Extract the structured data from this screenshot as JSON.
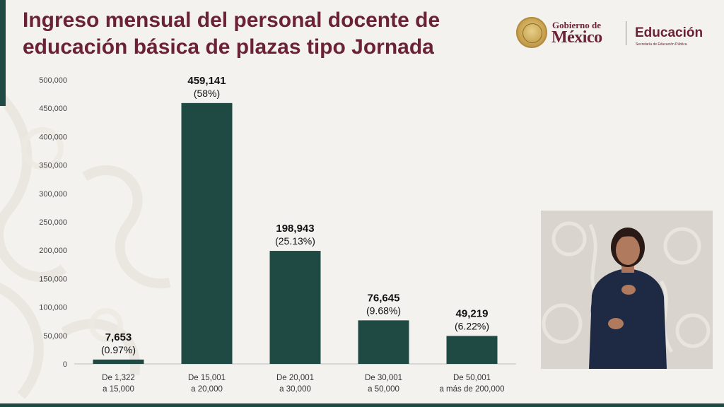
{
  "header": {
    "title_line1": "Ingreso mensual del personal docente de",
    "title_line2": "educación básica de plazas tipo Jornada"
  },
  "logos": {
    "gobierno_small": "Gobierno de",
    "gobierno_big": "México",
    "educacion": "Educación",
    "educacion_sub": "Secretaría de Educación Pública"
  },
  "colors": {
    "bar": "#1f4a44",
    "title": "#6b2136",
    "background": "#f4f2ef",
    "accent_gold": "#b38d3f"
  },
  "chart_data": {
    "type": "bar",
    "categories": [
      [
        "De 1,322",
        "a 15,000"
      ],
      [
        "De 15,001",
        "a 20,000"
      ],
      [
        "De 20,001",
        "a 30,000"
      ],
      [
        "De 30,001",
        "a 50,000"
      ],
      [
        "De 50,001",
        "a más de 200,000"
      ]
    ],
    "values": [
      7653,
      459141,
      198943,
      76645,
      49219
    ],
    "value_labels": [
      "7,653",
      "459,141",
      "198,943",
      "76,645",
      "49,219"
    ],
    "percent_labels": [
      "(0.97%)",
      "(58%)",
      "(25.13%)",
      "(9.68%)",
      "(6.22%)"
    ],
    "y_ticks": [
      0,
      50000,
      100000,
      150000,
      200000,
      250000,
      300000,
      350000,
      400000,
      450000,
      500000
    ],
    "y_tick_labels": [
      "0",
      "50,000",
      "100,000",
      "150,000",
      "200,000",
      "250,000",
      "300,000",
      "350,000",
      "400,000",
      "450,000",
      "500,000"
    ],
    "ylim": [
      0,
      500000
    ],
    "grid": false,
    "title": "Ingreso mensual del personal docente de educación básica de plazas tipo Jornada",
    "xlabel": "",
    "ylabel": ""
  }
}
